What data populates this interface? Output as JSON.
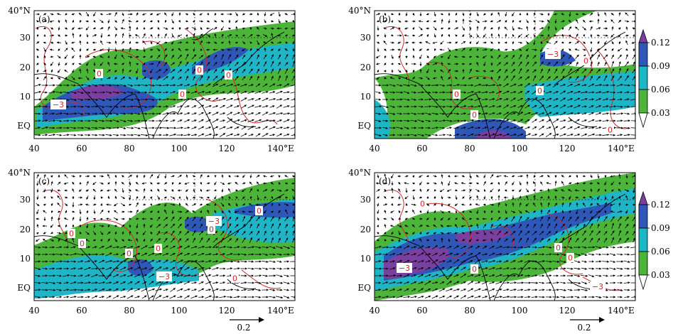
{
  "panels": [
    {
      "label": "(a)",
      "contour_labels": [
        "0",
        "0",
        "0",
        "0",
        "−3"
      ]
    },
    {
      "label": "(b)",
      "contour_labels": [
        "−3",
        "0",
        "0",
        "0",
        "0",
        "0"
      ]
    },
    {
      "label": "(c)",
      "contour_labels": [
        "0",
        "−3",
        "0",
        "0",
        "0",
        "0",
        "0",
        "−3",
        "0"
      ]
    },
    {
      "label": "(d)",
      "contour_labels": [
        "0",
        "0",
        "0",
        "−3",
        "0",
        "−3"
      ]
    }
  ],
  "lat_labels": [
    "40°N",
    "30",
    "20",
    "10",
    "EQ"
  ],
  "lon_labels": [
    "40",
    "60",
    "80",
    "100",
    "120",
    "140°E"
  ],
  "colorbar": {
    "ticks": [
      "0.12",
      "0.09",
      "0.06",
      "0.03"
    ],
    "colors": [
      "#7b3fa0",
      "#2f57b8",
      "#1eb5c7",
      "#4db43a",
      "#ffffff"
    ]
  },
  "reference_vector": {
    "label": "0.2"
  },
  "colors": {
    "contour": "#d0282c",
    "vector": "#000000",
    "coast": "#000000"
  }
}
